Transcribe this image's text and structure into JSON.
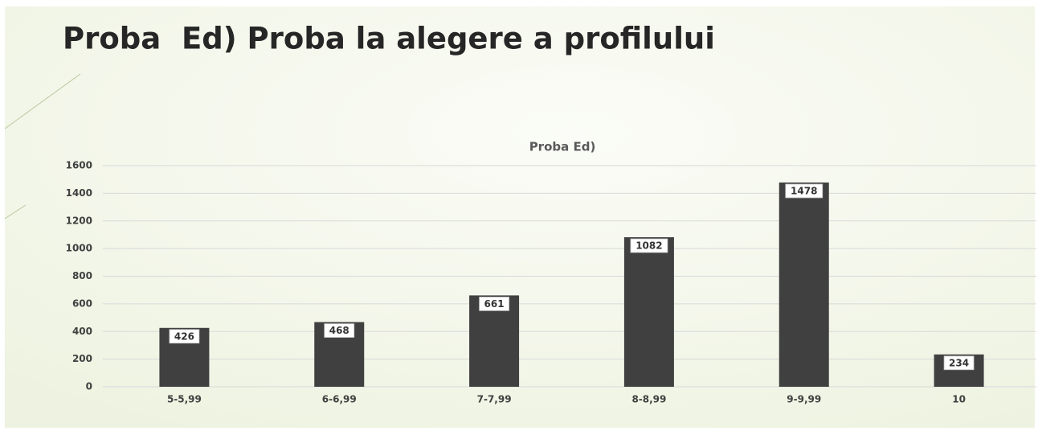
{
  "slide_title": "Proba  Ed) Proba la alegere a profilului",
  "chart_data": {
    "type": "bar",
    "title": "Proba Ed)",
    "categories": [
      "5-5,99",
      "6-6,99",
      "7-7,99",
      "8-8,99",
      "9-9,99",
      "10"
    ],
    "values": [
      426,
      468,
      661,
      1082,
      1478,
      234
    ],
    "color": "#404040",
    "ylim": [
      0,
      1600
    ],
    "yticks": [
      0,
      200,
      400,
      600,
      800,
      1000,
      1200,
      1400,
      1600
    ],
    "grid": true
  }
}
